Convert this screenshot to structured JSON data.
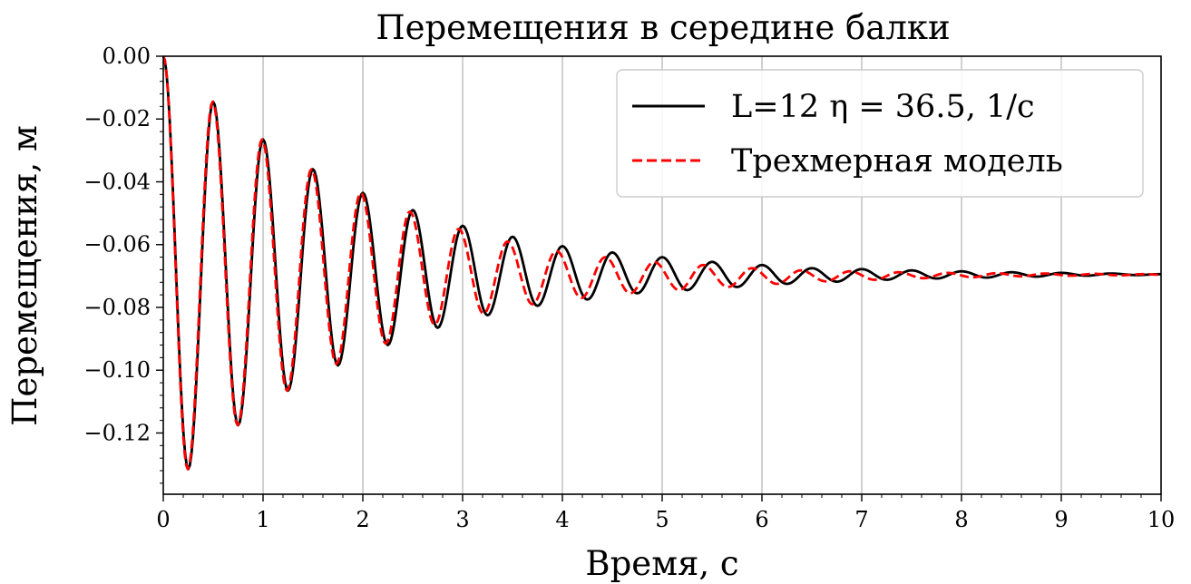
{
  "chart_data": {
    "type": "line",
    "title": "Перемещения в середине балки",
    "xlabel": "Время, с",
    "ylabel": "Перемещения, м",
    "xlim": [
      0,
      10
    ],
    "ylim": [
      -0.1395,
      0.0
    ],
    "grid": "vertical lines at major x ticks",
    "legend_position": "top-right",
    "x_ticks": [
      "0",
      "1",
      "2",
      "3",
      "4",
      "5",
      "6",
      "7",
      "8",
      "9",
      "10"
    ],
    "y_ticks": [
      "0.00",
      "−0.02",
      "−0.04",
      "−0.06",
      "−0.08",
      "−0.10",
      "−0.12"
    ],
    "series": [
      {
        "name": "L=12 η = 36.5, 1/c",
        "color": "#000000",
        "style": "solid",
        "peaks": [
          [
            0.0,
            0.0
          ],
          [
            0.25,
            -0.1315
          ],
          [
            0.5,
            -0.0145
          ],
          [
            0.75,
            -0.1175
          ],
          [
            1.0,
            -0.0265
          ],
          [
            1.25,
            -0.1065
          ],
          [
            1.5,
            -0.036
          ],
          [
            1.75,
            -0.0985
          ],
          [
            2.0,
            -0.0435
          ],
          [
            2.25,
            -0.092
          ],
          [
            2.5,
            -0.049
          ],
          [
            2.75,
            -0.0865
          ],
          [
            3.0,
            -0.054
          ],
          [
            3.25,
            -0.0825
          ],
          [
            3.5,
            -0.0575
          ],
          [
            3.75,
            -0.0795
          ],
          [
            4.0,
            -0.0605
          ],
          [
            4.25,
            -0.0775
          ],
          [
            4.5,
            -0.0625
          ],
          [
            4.75,
            -0.0755
          ],
          [
            5.0,
            -0.064
          ],
          [
            5.25,
            -0.0745
          ],
          [
            5.5,
            -0.0655
          ],
          [
            5.75,
            -0.0735
          ],
          [
            6.0,
            -0.0665
          ],
          [
            6.25,
            -0.0725
          ],
          [
            6.5,
            -0.0675
          ],
          [
            6.75,
            -0.0718
          ],
          [
            7.0,
            -0.0678
          ],
          [
            7.25,
            -0.0712
          ],
          [
            7.5,
            -0.0682
          ],
          [
            7.75,
            -0.0708
          ],
          [
            8.0,
            -0.0685
          ],
          [
            8.25,
            -0.0705
          ],
          [
            8.5,
            -0.0688
          ],
          [
            8.75,
            -0.0702
          ],
          [
            9.0,
            -0.069
          ],
          [
            9.25,
            -0.0699
          ],
          [
            9.5,
            -0.0692
          ],
          [
            9.75,
            -0.0697
          ],
          [
            10.0,
            -0.0694
          ]
        ]
      },
      {
        "name": "Трехмерная модель",
        "color": "#ff0000",
        "style": "dashed",
        "peaks": [
          [
            0.0,
            0.0
          ],
          [
            0.245,
            -0.1315
          ],
          [
            0.495,
            -0.0145
          ],
          [
            0.745,
            -0.1175
          ],
          [
            0.99,
            -0.0265
          ],
          [
            1.24,
            -0.1065
          ],
          [
            1.485,
            -0.036
          ],
          [
            1.735,
            -0.098
          ],
          [
            1.98,
            -0.0435
          ],
          [
            2.23,
            -0.0915
          ],
          [
            2.47,
            -0.0495
          ],
          [
            2.72,
            -0.0855
          ],
          [
            2.96,
            -0.055
          ],
          [
            3.21,
            -0.082
          ],
          [
            3.45,
            -0.059
          ],
          [
            3.7,
            -0.079
          ],
          [
            3.94,
            -0.062
          ],
          [
            4.19,
            -0.077
          ],
          [
            4.43,
            -0.064
          ],
          [
            4.68,
            -0.0755
          ],
          [
            4.92,
            -0.0655
          ],
          [
            5.17,
            -0.0745
          ],
          [
            5.41,
            -0.0665
          ],
          [
            5.66,
            -0.0735
          ],
          [
            5.9,
            -0.0675
          ],
          [
            6.15,
            -0.0725
          ],
          [
            6.39,
            -0.0682
          ],
          [
            6.64,
            -0.0717
          ],
          [
            6.88,
            -0.0685
          ],
          [
            7.13,
            -0.0712
          ],
          [
            7.37,
            -0.0688
          ],
          [
            7.62,
            -0.0707
          ],
          [
            7.86,
            -0.069
          ],
          [
            8.11,
            -0.0704
          ],
          [
            8.35,
            -0.0691
          ],
          [
            8.6,
            -0.0701
          ],
          [
            8.84,
            -0.0692
          ],
          [
            9.09,
            -0.0699
          ],
          [
            9.33,
            -0.0693
          ],
          [
            9.58,
            -0.0698
          ],
          [
            9.82,
            -0.0694
          ],
          [
            10.0,
            -0.0696
          ]
        ]
      }
    ]
  }
}
